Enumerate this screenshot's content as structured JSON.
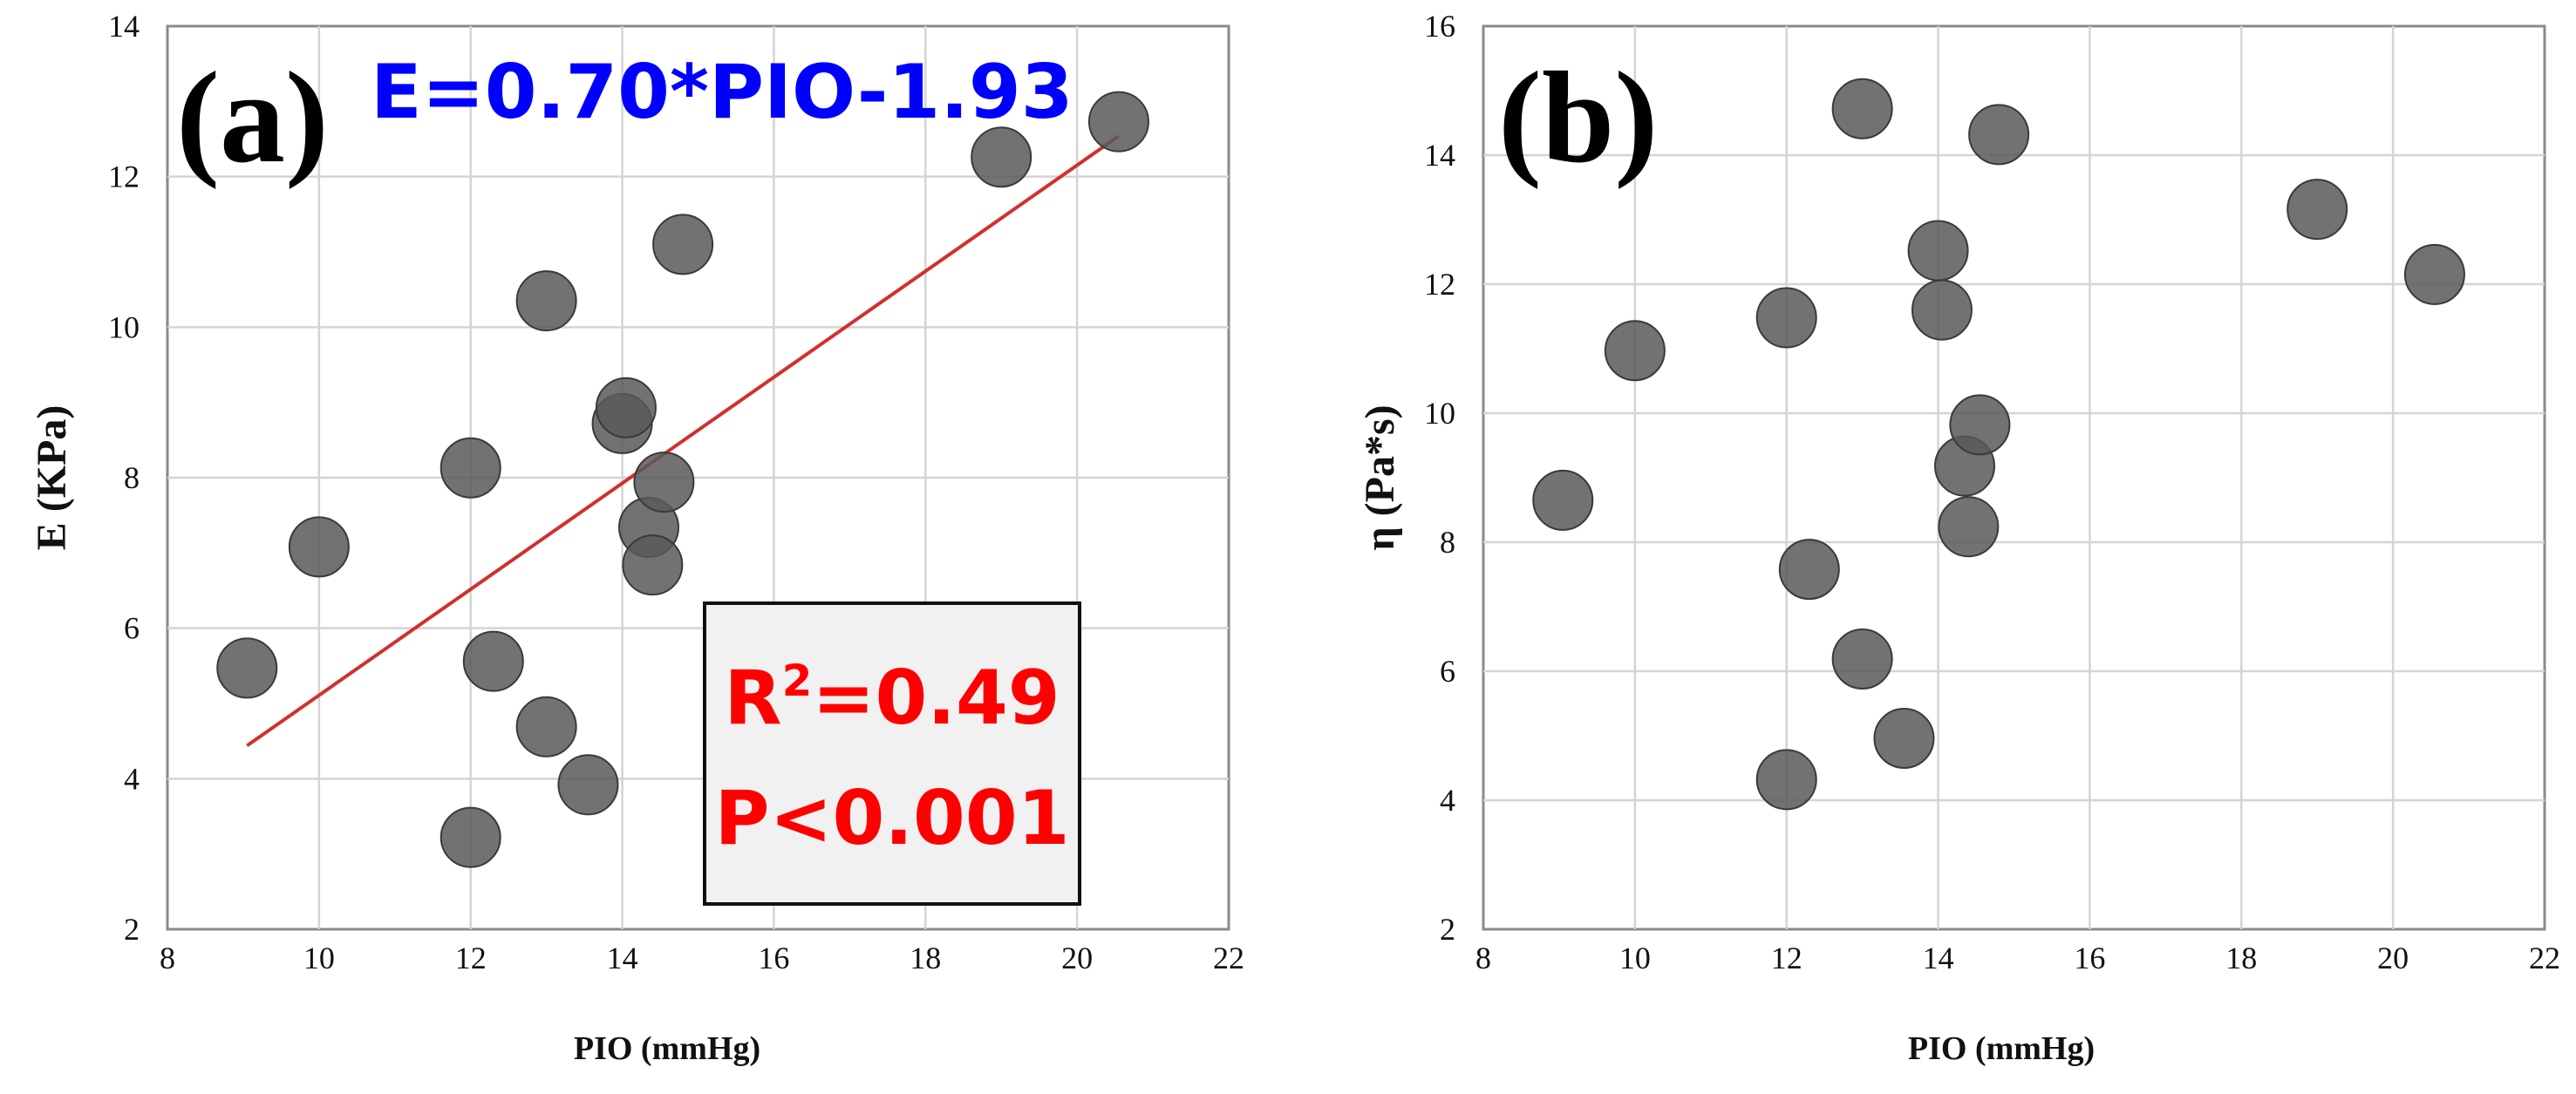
{
  "chart_data": [
    {
      "panel": "(a)",
      "type": "scatter",
      "xlabel": "PIO (mmHg)",
      "ylabel": "E (KPa)",
      "xlim": [
        8,
        22
      ],
      "ylim": [
        2,
        14
      ],
      "xticks": [
        8,
        10,
        12,
        14,
        16,
        18,
        20,
        22
      ],
      "yticks": [
        2,
        4,
        6,
        8,
        10,
        12,
        14
      ],
      "x_tick_labels": [
        "8",
        "10",
        "12",
        "14",
        "16",
        "18",
        "20",
        "22"
      ],
      "y_tick_labels": [
        "2",
        "4",
        "6",
        "8",
        "10",
        "12",
        "14"
      ],
      "grid": true,
      "points": [
        {
          "x": 9.05,
          "y": 5.47
        },
        {
          "x": 10.0,
          "y": 7.08
        },
        {
          "x": 12.0,
          "y": 8.13
        },
        {
          "x": 12.0,
          "y": 3.22
        },
        {
          "x": 12.3,
          "y": 5.56
        },
        {
          "x": 13.0,
          "y": 10.35
        },
        {
          "x": 13.0,
          "y": 4.69
        },
        {
          "x": 13.55,
          "y": 3.92
        },
        {
          "x": 14.0,
          "y": 8.72
        },
        {
          "x": 14.05,
          "y": 8.93
        },
        {
          "x": 14.35,
          "y": 7.34
        },
        {
          "x": 14.4,
          "y": 6.84
        },
        {
          "x": 14.55,
          "y": 7.94
        },
        {
          "x": 14.8,
          "y": 11.1
        },
        {
          "x": 19.0,
          "y": 12.26
        },
        {
          "x": 20.55,
          "y": 12.73
        }
      ],
      "fit_line": {
        "x": [
          9.05,
          20.55
        ],
        "y": [
          4.44,
          12.54
        ],
        "color": "#d0312d"
      },
      "equation": "E=0.70*PIO-1.93",
      "equation_color": "#0000ff",
      "stats": {
        "r2_prefix": "R",
        "r2_sup": "2",
        "r2_value": "=0.49",
        "p_text": "P<0.001",
        "color": "#ff0000"
      }
    },
    {
      "panel": "(b)",
      "type": "scatter",
      "xlabel": "PIO (mmHg)",
      "ylabel": "η (Pa*s)",
      "xlim": [
        8,
        22
      ],
      "ylim": [
        2,
        16
      ],
      "xticks": [
        8,
        10,
        12,
        14,
        16,
        18,
        20,
        22
      ],
      "yticks": [
        2,
        4,
        6,
        8,
        10,
        12,
        14,
        16
      ],
      "x_tick_labels": [
        "8",
        "10",
        "12",
        "14",
        "16",
        "18",
        "20",
        "22"
      ],
      "y_tick_labels": [
        "2",
        "4",
        "6",
        "8",
        "10",
        "12",
        "14",
        "16"
      ],
      "grid": true,
      "points": [
        {
          "x": 9.05,
          "y": 8.65
        },
        {
          "x": 10.0,
          "y": 10.97
        },
        {
          "x": 12.0,
          "y": 11.48
        },
        {
          "x": 12.0,
          "y": 4.32
        },
        {
          "x": 12.3,
          "y": 7.58
        },
        {
          "x": 13.0,
          "y": 14.72
        },
        {
          "x": 13.0,
          "y": 6.19
        },
        {
          "x": 13.55,
          "y": 4.96
        },
        {
          "x": 14.0,
          "y": 12.52
        },
        {
          "x": 14.05,
          "y": 11.6
        },
        {
          "x": 14.35,
          "y": 9.18
        },
        {
          "x": 14.4,
          "y": 8.24
        },
        {
          "x": 14.55,
          "y": 9.82
        },
        {
          "x": 14.8,
          "y": 14.32
        },
        {
          "x": 19.0,
          "y": 13.16
        },
        {
          "x": 20.55,
          "y": 12.15
        }
      ]
    }
  ]
}
